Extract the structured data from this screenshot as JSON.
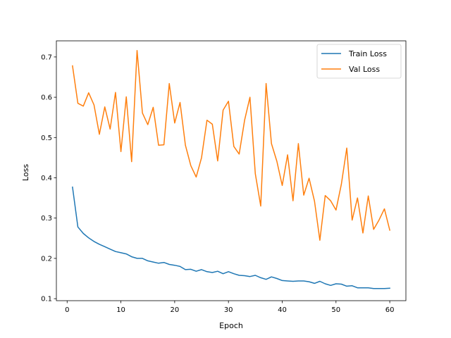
{
  "chart_data": {
    "type": "line",
    "title": "",
    "xlabel": "Epoch",
    "ylabel": "Loss",
    "xlim": [
      -2,
      63
    ],
    "ylim": [
      0.095,
      0.74
    ],
    "xticks": [
      0,
      10,
      20,
      30,
      40,
      50,
      60
    ],
    "xtick_labels": [
      "0",
      "10",
      "20",
      "30",
      "40",
      "50",
      "60"
    ],
    "yticks": [
      0.1,
      0.2,
      0.3,
      0.4,
      0.5,
      0.6,
      0.7
    ],
    "ytick_labels": [
      "0.1",
      "0.2",
      "0.3",
      "0.4",
      "0.5",
      "0.6",
      "0.7"
    ],
    "grid": false,
    "legend_position": "top-right",
    "x": [
      1,
      2,
      3,
      4,
      5,
      6,
      7,
      8,
      9,
      10,
      11,
      12,
      13,
      14,
      15,
      16,
      17,
      18,
      19,
      20,
      21,
      22,
      23,
      24,
      25,
      26,
      27,
      28,
      29,
      30,
      31,
      32,
      33,
      34,
      35,
      36,
      37,
      38,
      39,
      40,
      41,
      42,
      43,
      44,
      45,
      46,
      47,
      48,
      49,
      50,
      51,
      52,
      53,
      54,
      55,
      56,
      57,
      58,
      59,
      60
    ],
    "series": [
      {
        "name": "Train Loss",
        "color": "#1f77b4",
        "values": [
          0.377,
          0.278,
          0.262,
          0.251,
          0.242,
          0.235,
          0.229,
          0.223,
          0.217,
          0.214,
          0.211,
          0.204,
          0.2,
          0.2,
          0.194,
          0.191,
          0.188,
          0.19,
          0.185,
          0.183,
          0.18,
          0.172,
          0.173,
          0.168,
          0.172,
          0.167,
          0.165,
          0.168,
          0.162,
          0.167,
          0.162,
          0.158,
          0.157,
          0.155,
          0.158,
          0.152,
          0.148,
          0.154,
          0.15,
          0.145,
          0.144,
          0.143,
          0.144,
          0.144,
          0.142,
          0.138,
          0.143,
          0.137,
          0.133,
          0.137,
          0.136,
          0.131,
          0.132,
          0.127,
          0.127,
          0.127,
          0.125,
          0.125,
          0.125,
          0.126
        ]
      },
      {
        "name": "Val Loss",
        "color": "#ff7f0e",
        "values": [
          0.678,
          0.585,
          0.578,
          0.611,
          0.581,
          0.508,
          0.576,
          0.521,
          0.612,
          0.465,
          0.601,
          0.44,
          0.716,
          0.561,
          0.532,
          0.575,
          0.481,
          0.482,
          0.634,
          0.536,
          0.587,
          0.481,
          0.43,
          0.402,
          0.45,
          0.543,
          0.533,
          0.442,
          0.568,
          0.59,
          0.478,
          0.459,
          0.543,
          0.6,
          0.41,
          0.33,
          0.634,
          0.485,
          0.441,
          0.381,
          0.457,
          0.343,
          0.485,
          0.357,
          0.399,
          0.342,
          0.245,
          0.356,
          0.343,
          0.32,
          0.384,
          0.474,
          0.295,
          0.35,
          0.263,
          0.355,
          0.272,
          0.295,
          0.323,
          0.27
        ]
      }
    ]
  }
}
